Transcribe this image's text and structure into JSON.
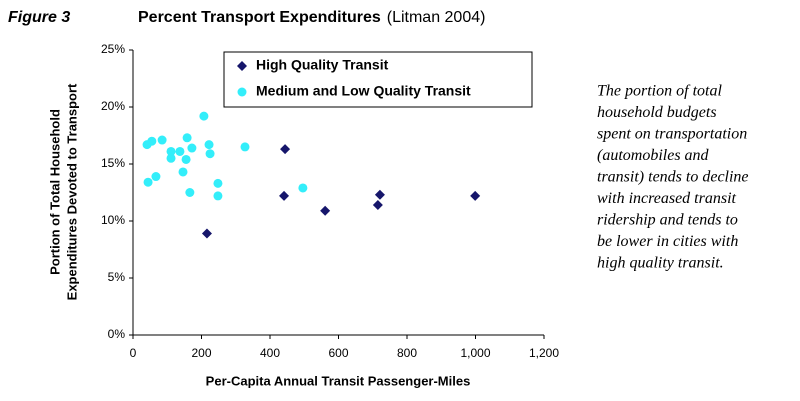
{
  "chart_data": {
    "type": "scatter",
    "figure_label": "Figure 3",
    "title": "Percent Transport Expenditures",
    "subtitle": "(Litman 2004)",
    "xlabel": "Per-Capita Annual Transit Passenger-Miles",
    "ylabel": [
      "Portion of Total Household",
      "Expenditures Devoted to Transport"
    ],
    "xlim": [
      0,
      1200
    ],
    "xticks": [
      0,
      200,
      400,
      600,
      800,
      {
        "value": 1000,
        "label": "1,000"
      },
      {
        "value": 1200,
        "label": "1,200"
      }
    ],
    "ylim": [
      0,
      25
    ],
    "yticks": [
      {
        "value": 0,
        "label": "0%"
      },
      {
        "value": 5,
        "label": "5%"
      },
      {
        "value": 10,
        "label": "10%"
      },
      {
        "value": 15,
        "label": "15%"
      },
      {
        "value": 20,
        "label": "20%"
      },
      {
        "value": 25,
        "label": "25%"
      }
    ],
    "grid": false,
    "legend": "top",
    "series": [
      {
        "name": "High Quality Transit",
        "color": "#16166b",
        "marker": "diamond",
        "x": [
          444,
          441,
          561,
          721,
          715,
          999,
          216
        ],
        "values": [
          16.3,
          12.2,
          10.9,
          12.3,
          11.4,
          12.2,
          8.9
        ]
      },
      {
        "name": "Medium and Low Quality Transit",
        "color": "#33eefa",
        "marker": "circle",
        "x": [
          41,
          55,
          85,
          44,
          67,
          111,
          111,
          137,
          146,
          155,
          158,
          172,
          166,
          207,
          222,
          225,
          248,
          248,
          327,
          496
        ],
        "values": [
          16.7,
          17.0,
          17.1,
          13.4,
          13.9,
          16.1,
          15.5,
          16.1,
          14.3,
          15.4,
          17.3,
          16.4,
          12.5,
          19.2,
          16.7,
          15.9,
          13.3,
          12.2,
          16.5,
          12.9
        ]
      }
    ],
    "caption": [
      "The portion of total",
      "household budgets",
      "spent on transportation",
      "(automobiles and",
      "transit) tends to decline",
      "with increased transit",
      "ridership and tends to",
      "be lower in cities with",
      "high quality transit."
    ]
  }
}
